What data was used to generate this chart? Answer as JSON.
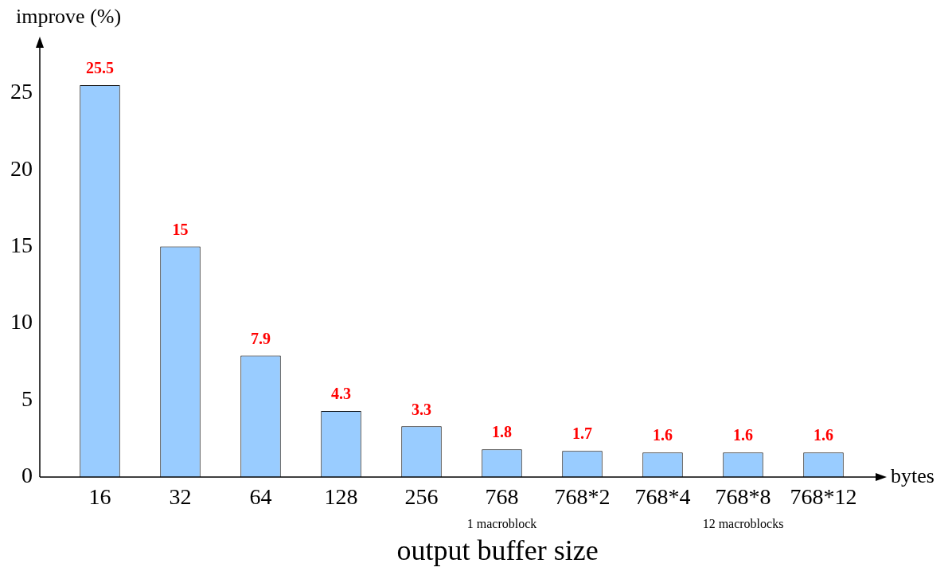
{
  "chart_data": {
    "type": "bar",
    "ylabel": "improve (%)",
    "xlabel": "output buffer size",
    "categories": [
      "16",
      "32",
      "64",
      "128",
      "256",
      "768",
      "768*2",
      "768*4",
      "768*8",
      "768*12"
    ],
    "values": [
      25.5,
      15,
      7.9,
      4.3,
      3.3,
      1.8,
      1.7,
      1.6,
      1.6,
      1.6
    ],
    "color": "#99ccff",
    "data_labels": true,
    "ylim": [
      0,
      28
    ],
    "yticks": [
      0,
      5,
      10,
      15,
      20,
      25
    ],
    "grid": false,
    "legend": false,
    "annotations": [
      "bytes",
      "1 macroblock",
      "12 macroblocks"
    ]
  }
}
